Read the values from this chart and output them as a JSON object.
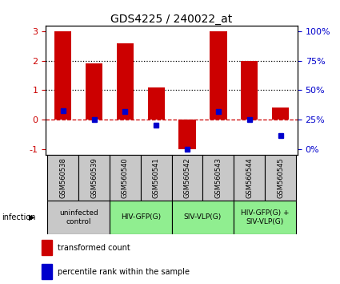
{
  "title": "GDS4225 / 240022_at",
  "samples": [
    "GSM560538",
    "GSM560539",
    "GSM560540",
    "GSM560541",
    "GSM560542",
    "GSM560543",
    "GSM560544",
    "GSM560545"
  ],
  "bar_values": [
    3.0,
    1.9,
    2.6,
    1.1,
    -1.0,
    3.0,
    2.0,
    0.4
  ],
  "dot_values": [
    0.3,
    0.0,
    0.27,
    -0.2,
    -1.0,
    0.27,
    0.0,
    -0.55
  ],
  "ylim": [
    -1.2,
    3.2
  ],
  "y_ticks_left": [
    -1,
    0,
    1,
    2,
    3
  ],
  "y_ticks_right_pct": [
    0,
    25,
    50,
    75,
    100
  ],
  "bar_color": "#cc0000",
  "dot_color": "#0000cc",
  "dashed_line_color": "#cc0000",
  "dotted_line_color": "#000000",
  "groups": [
    {
      "label": "uninfected\ncontrol",
      "start": 0,
      "end": 2,
      "color": "#c8c8c8"
    },
    {
      "label": "HIV-GFP(G)",
      "start": 2,
      "end": 4,
      "color": "#90ee90"
    },
    {
      "label": "SIV-VLP(G)",
      "start": 4,
      "end": 6,
      "color": "#90ee90"
    },
    {
      "label": "HIV-GFP(G) +\nSIV-VLP(G)",
      "start": 6,
      "end": 8,
      "color": "#90ee90"
    }
  ],
  "sample_box_color": "#c8c8c8",
  "legend_transformed": "transformed count",
  "legend_percentile": "percentile rank within the sample",
  "infection_label": "infection",
  "background_color": "#ffffff",
  "tick_label_color_left": "#cc0000",
  "tick_label_color_right": "#0000cc",
  "bar_width": 0.55,
  "dot_size": 4
}
